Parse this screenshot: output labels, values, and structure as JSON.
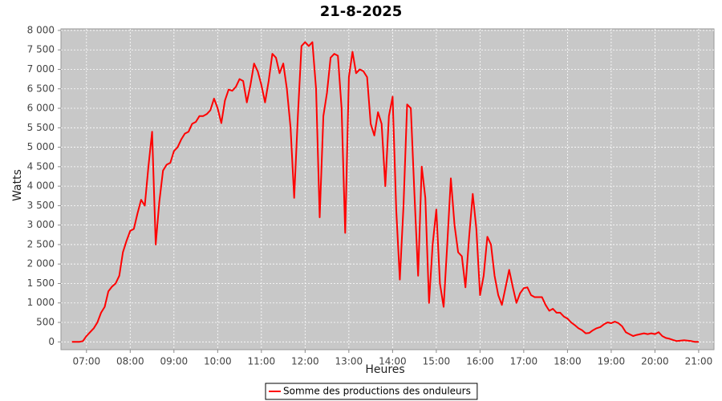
{
  "chart_data": {
    "type": "line",
    "title": "21-8-2025",
    "x_label": "Heures",
    "y_label": "Watts",
    "x": [
      "06:40",
      "06:45",
      "06:50",
      "06:55",
      "07:00",
      "07:05",
      "07:10",
      "07:15",
      "07:20",
      "07:25",
      "07:30",
      "07:35",
      "07:40",
      "07:45",
      "07:50",
      "07:55",
      "08:00",
      "08:05",
      "08:10",
      "08:15",
      "08:20",
      "08:25",
      "08:30",
      "08:35",
      "08:40",
      "08:45",
      "08:50",
      "08:55",
      "09:00",
      "09:05",
      "09:10",
      "09:15",
      "09:20",
      "09:25",
      "09:30",
      "09:35",
      "09:40",
      "09:45",
      "09:50",
      "09:55",
      "10:00",
      "10:05",
      "10:10",
      "10:15",
      "10:20",
      "10:25",
      "10:30",
      "10:35",
      "10:40",
      "10:45",
      "10:50",
      "10:55",
      "11:00",
      "11:05",
      "11:10",
      "11:15",
      "11:20",
      "11:25",
      "11:30",
      "11:35",
      "11:40",
      "11:45",
      "11:50",
      "11:55",
      "12:00",
      "12:05",
      "12:10",
      "12:15",
      "12:20",
      "12:25",
      "12:30",
      "12:35",
      "12:40",
      "12:45",
      "12:50",
      "12:55",
      "13:00",
      "13:05",
      "13:10",
      "13:15",
      "13:20",
      "13:25",
      "13:30",
      "13:35",
      "13:40",
      "13:45",
      "13:50",
      "13:55",
      "14:00",
      "14:05",
      "14:10",
      "14:15",
      "14:20",
      "14:25",
      "14:30",
      "14:35",
      "14:40",
      "14:45",
      "14:50",
      "14:55",
      "15:00",
      "15:05",
      "15:10",
      "15:15",
      "15:20",
      "15:25",
      "15:30",
      "15:35",
      "15:40",
      "15:45",
      "15:50",
      "15:55",
      "16:00",
      "16:05",
      "16:10",
      "16:15",
      "16:20",
      "16:25",
      "16:30",
      "16:35",
      "16:40",
      "16:45",
      "16:50",
      "16:55",
      "17:00",
      "17:05",
      "17:10",
      "17:15",
      "17:20",
      "17:25",
      "17:30",
      "17:35",
      "17:40",
      "17:45",
      "17:50",
      "17:55",
      "18:00",
      "18:05",
      "18:10",
      "18:15",
      "18:20",
      "18:25",
      "18:30",
      "18:35",
      "18:40",
      "18:45",
      "18:50",
      "18:55",
      "19:00",
      "19:05",
      "19:10",
      "19:15",
      "19:20",
      "19:25",
      "19:30",
      "19:35",
      "19:40",
      "19:45",
      "19:50",
      "19:55",
      "20:00",
      "20:05",
      "20:10",
      "20:15",
      "20:20",
      "20:25",
      "20:30",
      "20:35",
      "20:40",
      "20:45",
      "20:50",
      "20:55",
      "21:00"
    ],
    "series": [
      {
        "name": "Somme des productions des onduleurs",
        "color": "#ff0000",
        "values": [
          0,
          0,
          0,
          20,
          150,
          250,
          350,
          500,
          750,
          900,
          1300,
          1420,
          1500,
          1700,
          2300,
          2600,
          2850,
          2900,
          3300,
          3650,
          3500,
          4500,
          5400,
          2500,
          3600,
          4400,
          4550,
          4600,
          4900,
          5000,
          5200,
          5350,
          5400,
          5600,
          5650,
          5800,
          5800,
          5850,
          5950,
          6250,
          6000,
          5620,
          6200,
          6480,
          6450,
          6550,
          6750,
          6700,
          6150,
          6600,
          7150,
          6950,
          6600,
          6150,
          6700,
          7400,
          7300,
          6900,
          7150,
          6500,
          5500,
          3700,
          5800,
          7600,
          7700,
          7600,
          7700,
          6500,
          3200,
          5800,
          6400,
          7300,
          7400,
          7350,
          6000,
          2800,
          6800,
          7450,
          6900,
          7000,
          6950,
          6800,
          5600,
          5300,
          5900,
          5600,
          4000,
          5800,
          6300,
          3400,
          1600,
          3500,
          6100,
          6000,
          3800,
          1700,
          4500,
          3700,
          1000,
          2500,
          3400,
          1500,
          900,
          2500,
          4200,
          3000,
          2300,
          2200,
          1400,
          2700,
          3800,
          2900,
          1200,
          1700,
          2700,
          2500,
          1700,
          1200,
          950,
          1400,
          1850,
          1400,
          1000,
          1250,
          1380,
          1400,
          1200,
          1150,
          1150,
          1150,
          950,
          800,
          850,
          750,
          750,
          650,
          600,
          500,
          430,
          350,
          300,
          220,
          230,
          300,
          350,
          380,
          450,
          500,
          480,
          520,
          480,
          400,
          250,
          200,
          150,
          180,
          200,
          220,
          200,
          220,
          200,
          250,
          150,
          100,
          80,
          50,
          20,
          30,
          40,
          30,
          20,
          0,
          0
        ]
      }
    ],
    "xlim": [
      "06:25",
      "21:21"
    ],
    "xticks": [
      "07:00",
      "08:00",
      "09:00",
      "10:00",
      "11:00",
      "12:00",
      "13:00",
      "14:00",
      "15:00",
      "16:00",
      "17:00",
      "18:00",
      "19:00",
      "20:00",
      "21:00"
    ],
    "ylim": [
      -200,
      8040
    ],
    "yticks": [
      0,
      500,
      {
        "value": 1000,
        "label": "1 000"
      },
      {
        "value": 1500,
        "label": "1 500"
      },
      {
        "value": 2000,
        "label": "2 000"
      },
      {
        "value": 2500,
        "label": "2 500"
      },
      {
        "value": 3000,
        "label": "3 000"
      },
      {
        "value": 3500,
        "label": "3 500"
      },
      {
        "value": 4000,
        "label": "4 000"
      },
      {
        "value": 4500,
        "label": "4 500"
      },
      {
        "value": 5000,
        "label": "5 000"
      },
      {
        "value": 5500,
        "label": "5 500"
      },
      {
        "value": 6000,
        "label": "6 000"
      },
      {
        "value": 6500,
        "label": "6 500"
      },
      {
        "value": 7000,
        "label": "7 000"
      },
      {
        "value": 7500,
        "label": "7 500"
      },
      {
        "value": 8000,
        "label": "8 000"
      }
    ],
    "grid": true,
    "legend": "bottom"
  }
}
